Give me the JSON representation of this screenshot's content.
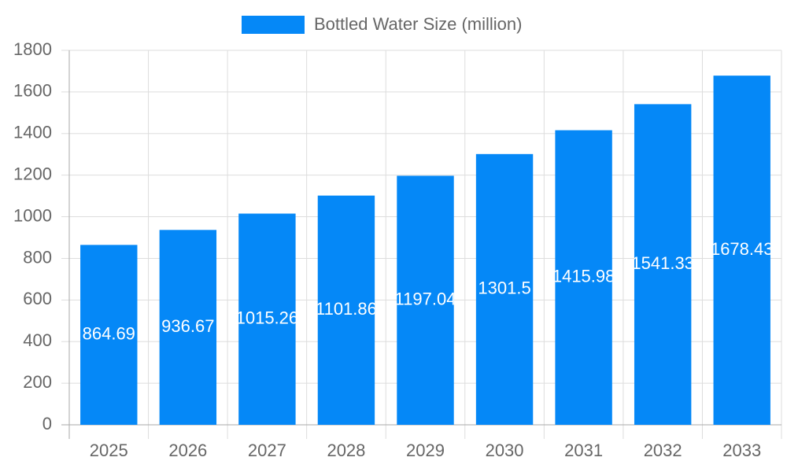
{
  "chart_data": {
    "type": "bar",
    "categories": [
      "2025",
      "2026",
      "2027",
      "2028",
      "2029",
      "2030",
      "2031",
      "2032",
      "2033"
    ],
    "series": [
      {
        "name": "Bottled Water Size (million)",
        "color": "#0588f7",
        "values": [
          864.69,
          936.67,
          1015.26,
          1101.86,
          1197.04,
          1301.5,
          1415.98,
          1541.33,
          1678.43
        ]
      }
    ],
    "ylim": [
      0,
      1800
    ],
    "yticks": [
      0,
      200,
      400,
      600,
      800,
      1000,
      1200,
      1400,
      1600,
      1800
    ],
    "grid": true,
    "legend": "top"
  }
}
